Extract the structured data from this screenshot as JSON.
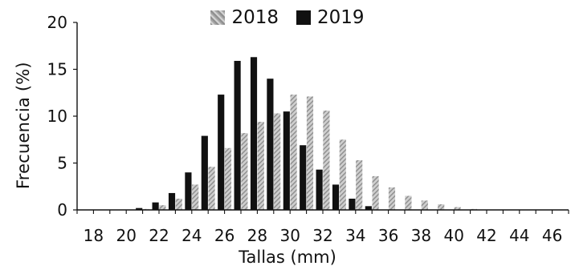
{
  "chart_data": {
    "type": "bar",
    "title": "",
    "xlabel": "Tallas (mm)",
    "ylabel": "Frecuencia  (%)",
    "xlim": [
      17,
      47
    ],
    "ylim": [
      0,
      20
    ],
    "x_ticks": [
      18,
      20,
      22,
      24,
      26,
      28,
      30,
      32,
      34,
      36,
      38,
      40,
      42,
      44,
      46
    ],
    "y_ticks": [
      0,
      5,
      10,
      15,
      20
    ],
    "categories": [
      17,
      18,
      19,
      20,
      21,
      22,
      23,
      24,
      25,
      26,
      27,
      28,
      29,
      30,
      31,
      32,
      33,
      34,
      35,
      36,
      37,
      38,
      39,
      40,
      41,
      42,
      43,
      44,
      45,
      46
    ],
    "series": [
      {
        "name": "2018",
        "color": "#a9a9a9",
        "values": [
          0,
          0,
          0,
          0,
          0.1,
          0.5,
          1.2,
          2.7,
          4.6,
          6.6,
          8.2,
          9.4,
          10.3,
          12.3,
          12.1,
          10.6,
          7.5,
          5.3,
          3.6,
          2.4,
          1.5,
          1.0,
          0.6,
          0.3,
          0.1,
          0,
          0,
          0,
          0,
          0
        ]
      },
      {
        "name": "2019",
        "color": "#111111",
        "values": [
          0,
          0,
          0,
          0,
          0.2,
          0.8,
          1.8,
          4.0,
          7.9,
          12.3,
          15.9,
          16.3,
          14.0,
          10.5,
          6.9,
          4.3,
          2.7,
          1.2,
          0.4,
          0,
          0,
          0,
          0,
          0,
          0,
          0,
          0,
          0,
          0,
          0
        ]
      }
    ],
    "legend_position": "top-center",
    "grid": false
  }
}
